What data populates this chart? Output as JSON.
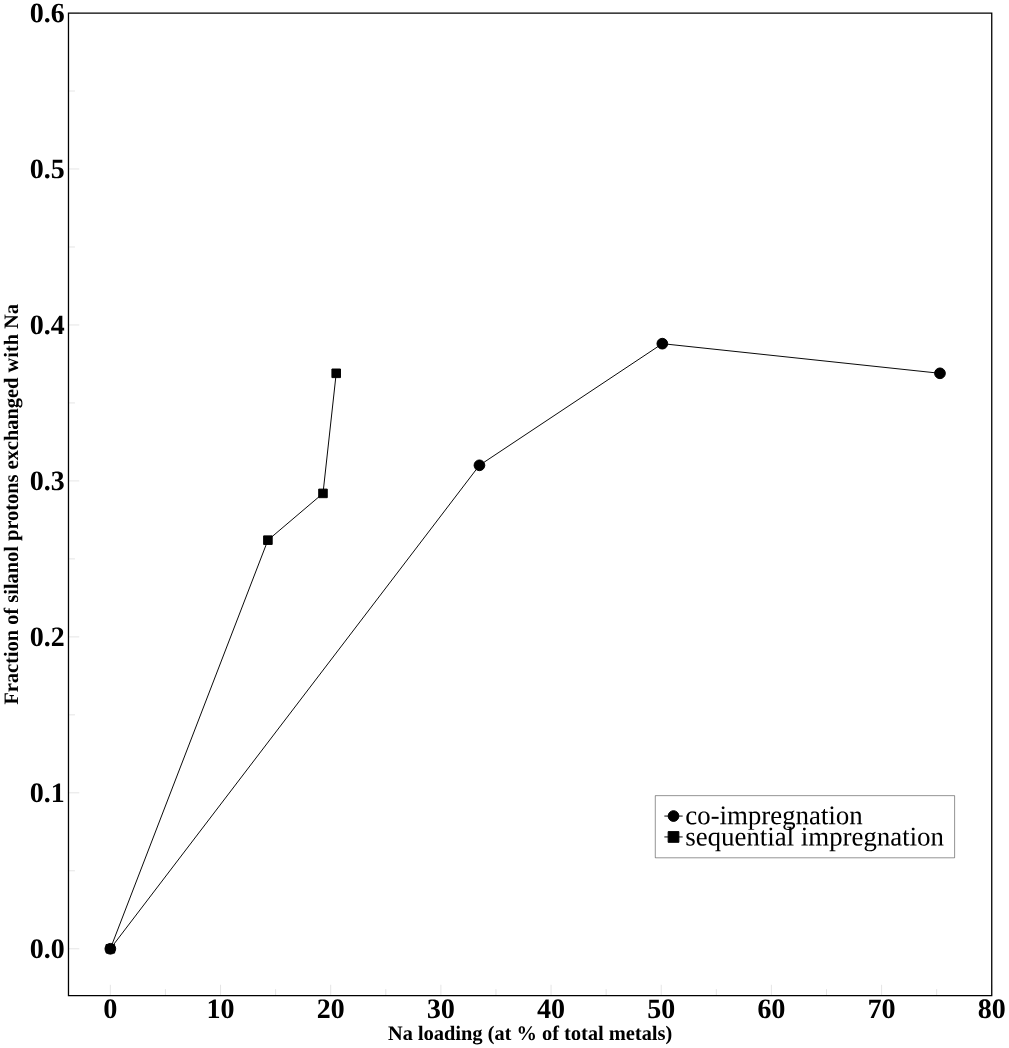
{
  "chart_data": {
    "type": "line",
    "xlabel": "Na loading (at % of total metals)",
    "ylabel": "Fraction of silanol protons exchanged with Na",
    "xlim": [
      -3.8,
      80
    ],
    "ylim": [
      -0.03,
      0.6
    ],
    "xticks": [
      0,
      10,
      20,
      30,
      40,
      50,
      60,
      70,
      80
    ],
    "yticks": [
      {
        "value": 0,
        "label": "0.0"
      },
      0.1,
      0.2,
      0.3,
      0.4,
      0.5,
      0.6
    ],
    "grid": false,
    "legend": "bottom right",
    "line_style": "solid",
    "series": [
      {
        "name": "co-impregnation",
        "color": "#000000",
        "marker": "circle",
        "x": [
          0,
          33.5,
          50.1,
          75.3
        ],
        "values": [
          0,
          0.31,
          0.388,
          0.369
        ]
      },
      {
        "name": "sequential impregnation",
        "color": "#000000",
        "marker": "square",
        "x": [
          0,
          14.3,
          19.3,
          20.5
        ],
        "values": [
          0,
          0.262,
          0.292,
          0.369
        ]
      }
    ]
  }
}
